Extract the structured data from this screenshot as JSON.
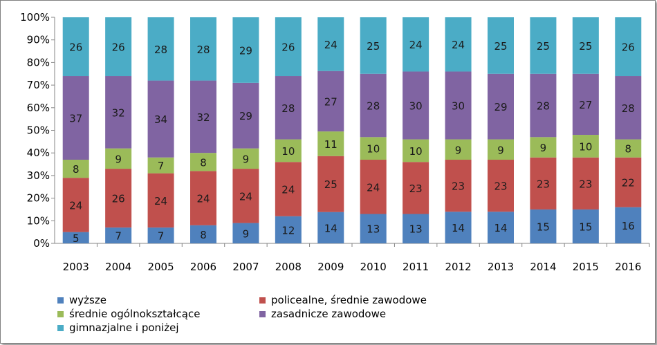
{
  "chart_data": {
    "type": "bar",
    "stacked": true,
    "percent": true,
    "categories": [
      "2003",
      "2004",
      "2005",
      "2006",
      "2007",
      "2008",
      "2009",
      "2010",
      "2011",
      "2012",
      "2013",
      "2014",
      "2015",
      "2016"
    ],
    "series": [
      {
        "name": "wyższe",
        "color": "#4f81bd",
        "values": [
          5,
          7,
          7,
          8,
          9,
          12,
          14,
          13,
          13,
          14,
          14,
          15,
          15,
          16
        ]
      },
      {
        "name": "policealne, średnie zawodowe",
        "color": "#c0504d",
        "values": [
          24,
          26,
          24,
          24,
          24,
          24,
          25,
          24,
          23,
          23,
          23,
          23,
          23,
          22
        ]
      },
      {
        "name": "średnie ogólnokształcące",
        "color": "#9bbb59",
        "values": [
          8,
          9,
          7,
          8,
          9,
          10,
          11,
          10,
          10,
          9,
          9,
          9,
          10,
          8
        ]
      },
      {
        "name": "zasadnicze zawodowe",
        "color": "#8064a2",
        "values": [
          37,
          32,
          34,
          32,
          29,
          28,
          27,
          28,
          30,
          30,
          29,
          28,
          27,
          28
        ]
      },
      {
        "name": "gimnazjalne i poniżej",
        "color": "#4bacc6",
        "values": [
          26,
          26,
          28,
          28,
          29,
          26,
          24,
          25,
          24,
          24,
          25,
          25,
          25,
          26
        ]
      }
    ],
    "yticks": [
      "0%",
      "10%",
      "20%",
      "30%",
      "40%",
      "50%",
      "60%",
      "70%",
      "80%",
      "90%",
      "100%"
    ],
    "ylim": [
      0,
      100
    ],
    "grid": false,
    "legend_position": "bottom"
  }
}
